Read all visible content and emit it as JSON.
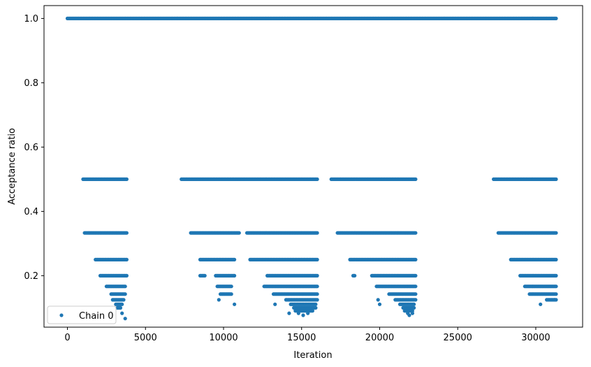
{
  "chart_data": {
    "type": "scatter",
    "title": "",
    "xlabel": "Iteration",
    "ylabel": "Acceptance ratio",
    "xlim": [
      -1500,
      33000
    ],
    "ylim": [
      0.04,
      1.04
    ],
    "xticks": [
      0,
      5000,
      10000,
      15000,
      20000,
      25000,
      30000
    ],
    "xtick_labels": [
      "0",
      "5000",
      "10000",
      "15000",
      "20000",
      "25000",
      "30000"
    ],
    "yticks": [
      0.2,
      0.4,
      0.6,
      0.8,
      1.0
    ],
    "ytick_labels": [
      "0.2",
      "0.4",
      "0.6",
      "0.8",
      "1.0"
    ],
    "grid": false,
    "legend": {
      "position": "lower-left",
      "entries": [
        "Chain 0"
      ]
    },
    "series_color": "#1f77b4",
    "series": [
      {
        "name": "Chain 0",
        "level_segments": [
          {
            "y": 1.0,
            "x_ranges": [
              [
                0,
                31300
              ]
            ]
          },
          {
            "y": 0.5,
            "x_ranges": [
              [
                1000,
                3800
              ],
              [
                7300,
                16000
              ],
              [
                16900,
                22300
              ],
              [
                27300,
                31300
              ]
            ]
          },
          {
            "y": 0.333,
            "x_ranges": [
              [
                1100,
                3800
              ],
              [
                7900,
                11000
              ],
              [
                11500,
                16000
              ],
              [
                17300,
                22300
              ],
              [
                27600,
                31300
              ]
            ]
          },
          {
            "y": 0.25,
            "x_ranges": [
              [
                1800,
                3800
              ],
              [
                8500,
                10700
              ],
              [
                11700,
                16000
              ],
              [
                18100,
                22300
              ],
              [
                28400,
                31300
              ]
            ]
          },
          {
            "y": 0.2,
            "x_ranges": [
              [
                2100,
                3800
              ],
              [
                8500,
                8800
              ],
              [
                9500,
                10700
              ],
              [
                12800,
                16000
              ],
              [
                18300,
                18400
              ],
              [
                19500,
                22300
              ],
              [
                29000,
                31300
              ]
            ]
          },
          {
            "y": 0.1667,
            "x_ranges": [
              [
                2500,
                3700
              ],
              [
                9600,
                10500
              ],
              [
                12600,
                16000
              ],
              [
                19800,
                22300
              ],
              [
                29300,
                31300
              ]
            ]
          },
          {
            "y": 0.1429,
            "x_ranges": [
              [
                2800,
                3700
              ],
              [
                9800,
                10500
              ],
              [
                13200,
                16000
              ],
              [
                20600,
                22300
              ],
              [
                29600,
                31300
              ]
            ]
          },
          {
            "y": 0.125,
            "x_ranges": [
              [
                2900,
                3600
              ],
              [
                14000,
                16000
              ],
              [
                21000,
                22300
              ],
              [
                30700,
                31300
              ]
            ]
          },
          {
            "y": 0.111,
            "x_ranges": [
              [
                3100,
                3500
              ],
              [
                14300,
                15900
              ],
              [
                21300,
                22200
              ]
            ]
          },
          {
            "y": 0.1,
            "x_ranges": [
              [
                3200,
                3400
              ],
              [
                14500,
                15900
              ],
              [
                21500,
                22200
              ]
            ]
          },
          {
            "y": 0.0909,
            "x_ranges": [
              [
                14600,
                15700
              ],
              [
                21600,
                22100
              ]
            ]
          }
        ],
        "points": [
          [
            3700,
            0.0667
          ],
          [
            3500,
            0.0833
          ],
          [
            14200,
            0.0833
          ],
          [
            14800,
            0.0833
          ],
          [
            15100,
            0.0769
          ],
          [
            15400,
            0.0833
          ],
          [
            21800,
            0.0833
          ],
          [
            22100,
            0.0833
          ],
          [
            10700,
            0.111
          ],
          [
            13300,
            0.111
          ],
          [
            20000,
            0.111
          ],
          [
            30300,
            0.111
          ],
          [
            19900,
            0.125
          ],
          [
            21900,
            0.0769
          ],
          [
            9700,
            0.125
          ],
          [
            31200,
            0.125
          ]
        ]
      }
    ]
  }
}
